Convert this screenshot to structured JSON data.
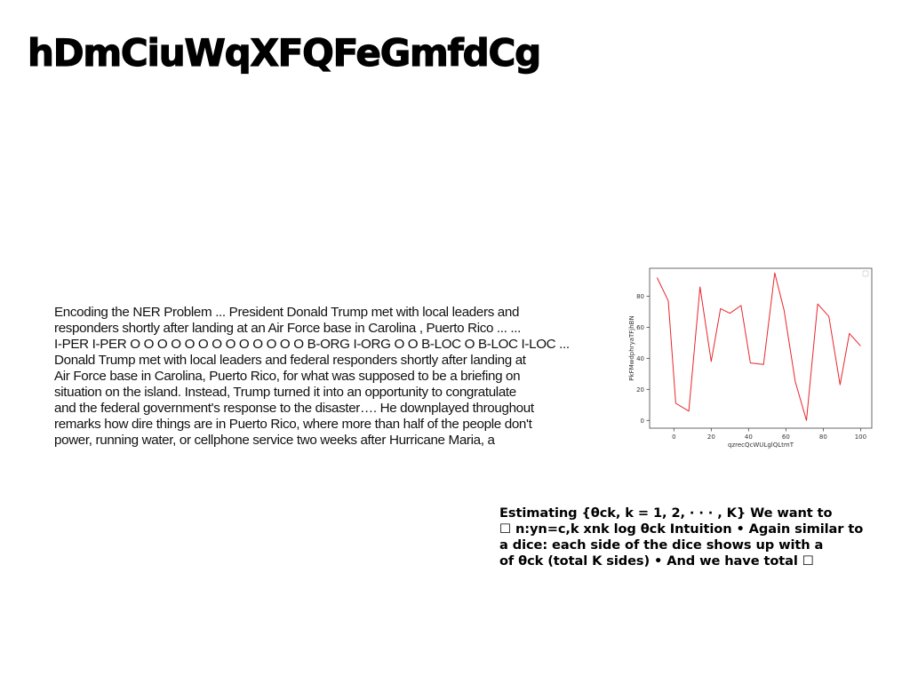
{
  "slide": {
    "title": "hDmCiuWqXFQFeGmfdCg"
  },
  "body_text": {
    "lines": [
      "Encoding the NER Problem ... President Donald Trump met with local leaders and",
      "responders shortly after landing at an Air Force base in Carolina , Puerto Rico ... ...",
      "I-PER I-PER O O O O O O O O O O O O O B-ORG I-ORG O O B-LOC O B-LOC I-LOC ...",
      "Donald Trump met with local leaders and federal responders shortly after landing at",
      "Air Force base in Carolina, Puerto Rico, for what was supposed to be a briefing on",
      "situation on the island. Instead, Trump turned it into an opportunity to congratulate",
      "and the federal government's response to the disaster…. He downplayed throughout",
      "remarks how dire things are in Puerto Rico, where more than half of the people don't",
      "power, running water, or cellphone service two weeks after Hurricane Maria, a"
    ]
  },
  "estimate_text": {
    "lines": [
      "Estimating {θck, k = 1, 2, · · · , K} We want to",
      "☐ n:yn=c,k xnk log θck Intuition • Again similar to",
      "a dice: each side of the dice shows up with a",
      "of θck (total K sides) • And we have total ☐"
    ]
  },
  "chart_data": {
    "type": "line",
    "title": "",
    "xlabel": "qzrecQcWULglQLtmT",
    "ylabel": "PkFMwdphryaTFjhBN",
    "xlim": [
      -13,
      106
    ],
    "ylim": [
      -5,
      98
    ],
    "xticks": [
      0,
      20,
      40,
      60,
      80,
      100
    ],
    "yticks": [
      0,
      20,
      40,
      60,
      80
    ],
    "grid": false,
    "legend": "top-right",
    "series": [
      {
        "color": "#e8262b",
        "x": [
          -9,
          -3,
          1,
          8,
          14,
          20,
          25,
          30,
          36,
          41,
          48,
          54,
          59,
          65,
          71,
          77,
          83,
          89,
          94,
          100
        ],
        "y": [
          92,
          77,
          11,
          6,
          86,
          38,
          72,
          69,
          74,
          37,
          36,
          95,
          71,
          25,
          0,
          75,
          67,
          23,
          56,
          48
        ]
      }
    ]
  }
}
